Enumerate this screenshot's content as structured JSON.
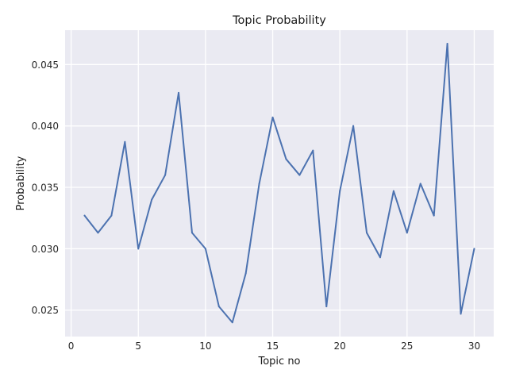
{
  "chart_data": {
    "type": "line",
    "title": "Topic Probability",
    "xlabel": "Topic no",
    "ylabel": "Probability",
    "xlim": [
      -0.45,
      31.45
    ],
    "ylim": [
      0.02285,
      0.0478
    ],
    "x_ticks": [
      0,
      5,
      10,
      15,
      20,
      25,
      30
    ],
    "x_tick_labels": [
      "0",
      "5",
      "10",
      "15",
      "20",
      "25",
      "30"
    ],
    "y_ticks": [
      0.025,
      0.03,
      0.035,
      0.04,
      0.045
    ],
    "y_tick_labels": [
      "0.025",
      "0.030",
      "0.035",
      "0.040",
      "0.045"
    ],
    "grid": true,
    "style": {
      "plot_background": "#eaeaf2",
      "grid_color": "#ffffff",
      "line_color": "#4c72b0"
    },
    "series": [
      {
        "x": [
          1,
          2,
          3,
          4,
          5,
          6,
          7,
          8,
          9,
          10,
          11,
          12,
          13,
          14,
          15,
          16,
          17,
          18,
          19,
          20,
          21,
          22,
          23,
          24,
          25,
          26,
          27,
          28,
          29,
          30
        ],
        "values": [
          0.0327,
          0.0313,
          0.0327,
          0.0387,
          0.03,
          0.034,
          0.036,
          0.0427,
          0.0313,
          0.03,
          0.0253,
          0.024,
          0.028,
          0.0353,
          0.0407,
          0.0373,
          0.036,
          0.038,
          0.0253,
          0.0347,
          0.04,
          0.0313,
          0.0293,
          0.0347,
          0.0313,
          0.0353,
          0.0327,
          0.0467,
          0.0247,
          0.03
        ]
      }
    ]
  }
}
